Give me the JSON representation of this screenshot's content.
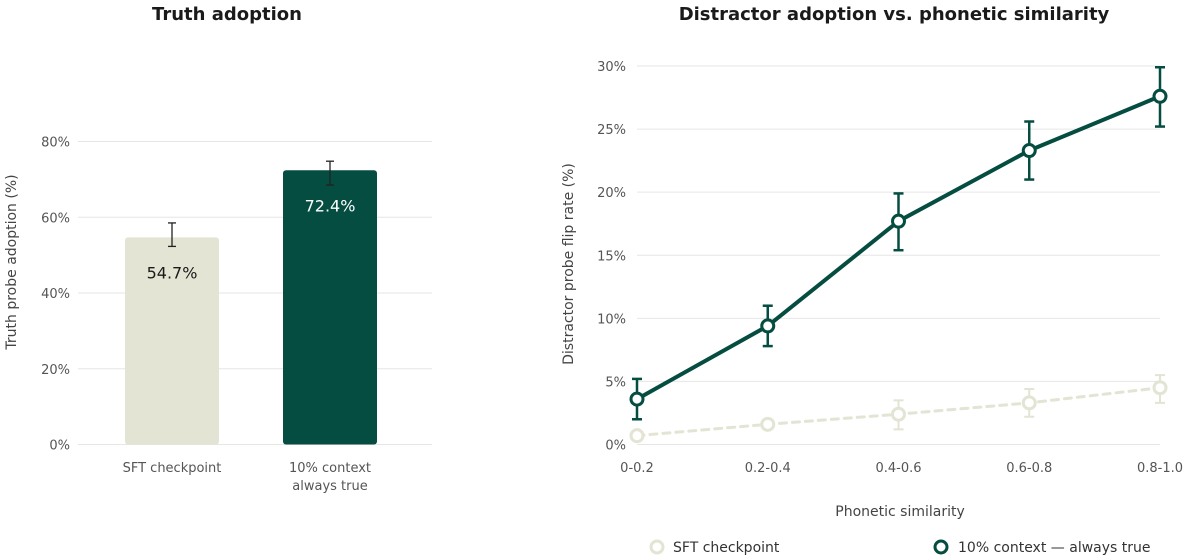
{
  "chart_data": [
    {
      "type": "bar",
      "title": "Truth adoption",
      "xlabel": "",
      "ylabel": "Truth probe adoption (%)",
      "ylim": [
        0,
        90
      ],
      "yticks": [
        0,
        20,
        40,
        60,
        80
      ],
      "ytick_labels": [
        "0%",
        "20%",
        "40%",
        "60%",
        "80%"
      ],
      "categories": [
        "SFT checkpoint",
        "10% context always true"
      ],
      "category_lines": [
        [
          "SFT checkpoint"
        ],
        [
          "10% context",
          "always true"
        ]
      ],
      "values": [
        54.7,
        72.4
      ],
      "value_labels": [
        "54.7%",
        "72.4%"
      ],
      "error": [
        [
          52.3,
          58.5
        ],
        [
          68.5,
          74.8
        ]
      ],
      "colors": [
        "#e3e4d3",
        "#054d40"
      ],
      "label_colors": [
        "#1a1a1a",
        "#ffffff"
      ],
      "grid": true
    },
    {
      "type": "line",
      "title": "Distractor adoption vs. phonetic similarity",
      "xlabel": "Phonetic similarity",
      "ylabel": "Distractor probe flip rate (%)",
      "ylim": [
        0,
        30
      ],
      "yticks": [
        0,
        5,
        10,
        15,
        20,
        25,
        30
      ],
      "ytick_labels": [
        "0%",
        "5%",
        "10%",
        "15%",
        "20%",
        "25%",
        "30%"
      ],
      "categories": [
        "0-0.2",
        "0.2-0.4",
        "0.4-0.6",
        "0.6-0.8",
        "0.8-1.0"
      ],
      "series": [
        {
          "name": "SFT checkpoint",
          "values": [
            0.7,
            1.6,
            2.4,
            3.3,
            4.5
          ],
          "error": [
            [
              0.5,
              0.9
            ],
            [
              1.3,
              1.9
            ],
            [
              1.2,
              3.5
            ],
            [
              2.2,
              4.4
            ],
            [
              3.3,
              5.5
            ]
          ],
          "color": "#e3e4d3",
          "dashed": true
        },
        {
          "name": "10% context — always true",
          "values": [
            3.6,
            9.4,
            17.7,
            23.3,
            27.6
          ],
          "error": [
            [
              2.0,
              5.2
            ],
            [
              7.8,
              11.0
            ],
            [
              15.4,
              19.9
            ],
            [
              21.0,
              25.6
            ],
            [
              25.2,
              29.9
            ]
          ],
          "color": "#054d40",
          "dashed": false
        }
      ],
      "legend": "bottom",
      "grid": true
    }
  ]
}
